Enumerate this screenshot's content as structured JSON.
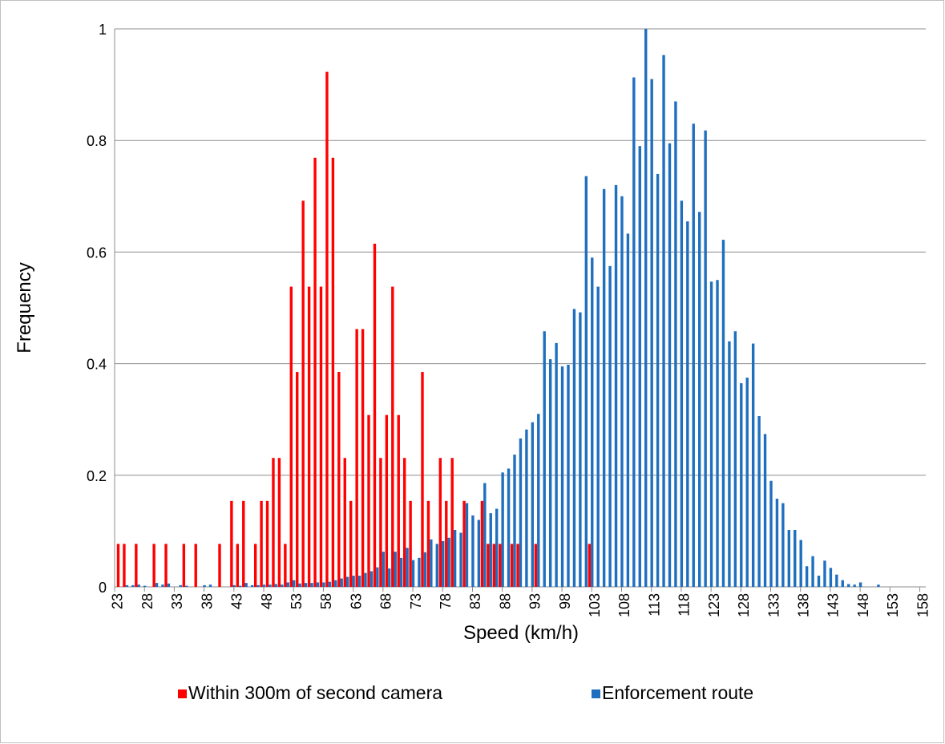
{
  "chart_data": {
    "type": "bar",
    "x_label": "Speed (km/h)",
    "y_label": "Frequency",
    "categories": [
      "23",
      null,
      null,
      null,
      null,
      "28",
      null,
      null,
      null,
      null,
      "33",
      null,
      null,
      null,
      null,
      "38",
      null,
      null,
      null,
      null,
      "43",
      null,
      null,
      null,
      null,
      "48",
      null,
      null,
      null,
      null,
      "53",
      null,
      null,
      null,
      null,
      "58",
      null,
      null,
      null,
      null,
      "63",
      null,
      null,
      null,
      null,
      "68",
      null,
      null,
      null,
      null,
      "73",
      null,
      null,
      null,
      null,
      "78",
      null,
      null,
      null,
      null,
      "83",
      null,
      null,
      null,
      null,
      "88",
      null,
      null,
      null,
      null,
      "93",
      null,
      null,
      null,
      null,
      "98",
      null,
      null,
      null,
      null,
      "103",
      null,
      null,
      null,
      null,
      "108",
      null,
      null,
      null,
      null,
      "113",
      null,
      null,
      null,
      null,
      "118",
      null,
      null,
      null,
      null,
      "123",
      null,
      null,
      null,
      null,
      "128",
      null,
      null,
      null,
      null,
      "133",
      null,
      null,
      null,
      null,
      "138",
      null,
      null,
      null,
      null,
      "143",
      null,
      null,
      null,
      null,
      "148",
      null,
      null,
      null,
      null,
      "153",
      null,
      null,
      null,
      null,
      "158"
    ],
    "series": [
      {
        "name": "Within 300m of second camera",
        "color": "#ff0000",
        "values": [
          0.077,
          0.077,
          0,
          0.077,
          0,
          0,
          0.077,
          0,
          0.077,
          0,
          0,
          0.077,
          0,
          0.077,
          0,
          0,
          0,
          0.077,
          0,
          0.154,
          0.077,
          0.154,
          0,
          0.077,
          0.154,
          0.154,
          0.231,
          0.231,
          0.077,
          0.538,
          0.385,
          0.692,
          0.538,
          0.769,
          0.538,
          0.923,
          0.769,
          0.385,
          0.231,
          0.154,
          0.462,
          0.462,
          0.308,
          0.615,
          0.231,
          0.308,
          0.538,
          0.308,
          0.231,
          0.154,
          0,
          0.385,
          0.154,
          0,
          0.231,
          0.154,
          0.231,
          0,
          0.154,
          0,
          0,
          0.154,
          0.077,
          0.077,
          0.077,
          0,
          0.077,
          0.077,
          0,
          0,
          0.077,
          0,
          0,
          0,
          0,
          0,
          0,
          0,
          0,
          0.077,
          0,
          0,
          0,
          0,
          0,
          0,
          0,
          0,
          0,
          0,
          0,
          0,
          0,
          0,
          0,
          0,
          0,
          0,
          0,
          0,
          0,
          0,
          0,
          0,
          0,
          0,
          0,
          0,
          0,
          0,
          0,
          0,
          0,
          0,
          0,
          0,
          0,
          0,
          0,
          0,
          0,
          0,
          0,
          0,
          0,
          0,
          0,
          0,
          0,
          0,
          0,
          0,
          0,
          0,
          0,
          0
        ]
      },
      {
        "name": "Enforcement route",
        "color": "#1f6fbf",
        "values": [
          0,
          0.003,
          0.003,
          0.004,
          0.002,
          0,
          0.007,
          0.004,
          0.006,
          0,
          0.003,
          0.002,
          0,
          0,
          0.003,
          0.004,
          0,
          0,
          0,
          0.003,
          0.002,
          0.007,
          0.003,
          0.003,
          0.004,
          0.004,
          0.005,
          0.004,
          0.008,
          0.012,
          0.006,
          0.007,
          0.007,
          0.008,
          0.008,
          0.009,
          0.012,
          0.015,
          0.018,
          0.02,
          0.02,
          0.025,
          0.028,
          0.035,
          0.063,
          0.033,
          0.063,
          0.052,
          0.07,
          0.048,
          0.052,
          0.062,
          0.085,
          0.077,
          0.082,
          0.088,
          0.102,
          0.097,
          0.15,
          0.128,
          0.12,
          0.186,
          0.132,
          0.14,
          0.205,
          0.212,
          0.237,
          0.266,
          0.282,
          0.295,
          0.31,
          0.458,
          0.408,
          0.437,
          0.395,
          0.398,
          0.498,
          0.492,
          0.736,
          0.59,
          0.538,
          0.713,
          0.575,
          0.72,
          0.7,
          0.633,
          0.913,
          0.79,
          1.0,
          0.91,
          0.74,
          0.953,
          0.795,
          0.87,
          0.692,
          0.655,
          0.83,
          0.672,
          0.818,
          0.547,
          0.55,
          0.622,
          0.44,
          0.458,
          0.365,
          0.375,
          0.436,
          0.306,
          0.274,
          0.19,
          0.158,
          0.15,
          0.102,
          0.102,
          0.084,
          0.037,
          0.055,
          0.02,
          0.047,
          0.034,
          0.022,
          0.012,
          0.005,
          0.004,
          0.008,
          0,
          0,
          0.004,
          0,
          0,
          0,
          0,
          0,
          0,
          0,
          0
        ]
      }
    ],
    "ylim": [
      0,
      1
    ],
    "yticks": [
      0,
      0.2,
      0.4,
      0.6,
      0.8,
      1
    ],
    "grid": true,
    "legend": "bottom"
  }
}
